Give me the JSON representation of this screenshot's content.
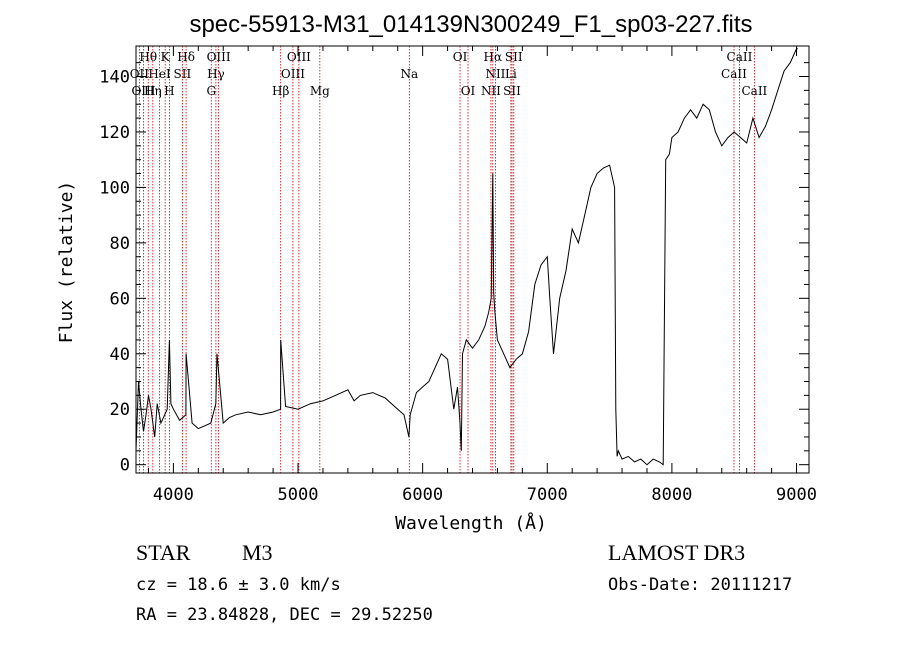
{
  "chart_data": {
    "type": "line",
    "title": "spec-55913-M31_014139N300249_F1_sp03-227.fits",
    "xlabel": "Wavelength (Å)",
    "ylabel": "Flux (relative)",
    "xlim": [
      3700,
      9100
    ],
    "ylim": [
      -3,
      151
    ],
    "x_ticks": [
      4000,
      5000,
      6000,
      7000,
      8000,
      9000
    ],
    "y_ticks": [
      0,
      20,
      40,
      60,
      80,
      100,
      120,
      140
    ],
    "grid": false,
    "series": [
      {
        "x": [
          3700,
          3720,
          3740,
          3760,
          3780,
          3800,
          3820,
          3850,
          3870,
          3900,
          3930,
          3950,
          3968,
          3980,
          4000,
          4050,
          4100,
          4102,
          4150,
          4200,
          4250,
          4300,
          4340,
          4350,
          4400,
          4450,
          4500,
          4600,
          4700,
          4800,
          4860,
          4861,
          4900,
          5000,
          5100,
          5200,
          5300,
          5400,
          5450,
          5500,
          5600,
          5700,
          5800,
          5850,
          5890,
          5900,
          5950,
          6000,
          6050,
          6100,
          6150,
          6200,
          6250,
          6280,
          6300,
          6310,
          6320,
          6350,
          6400,
          6450,
          6500,
          6530,
          6550,
          6563,
          6570,
          6580,
          6600,
          6650,
          6700,
          6750,
          6800,
          6850,
          6900,
          6950,
          7000,
          7020,
          7050,
          7100,
          7150,
          7200,
          7250,
          7300,
          7350,
          7400,
          7450,
          7500,
          7540,
          7550,
          7560,
          7570,
          7600,
          7650,
          7700,
          7750,
          7800,
          7850,
          7900,
          7930,
          7950,
          7980,
          8000,
          8050,
          8100,
          8150,
          8200,
          8250,
          8300,
          8350,
          8400,
          8450,
          8500,
          8550,
          8600,
          8650,
          8700,
          8750,
          8800,
          8850,
          8900,
          8950,
          9000,
          9010
        ],
        "y": [
          5,
          30,
          20,
          12,
          18,
          25,
          20,
          10,
          22,
          15,
          18,
          20,
          45,
          22,
          20,
          16,
          18,
          40,
          15,
          13,
          14,
          15,
          22,
          40,
          15,
          17,
          18,
          19,
          18,
          19,
          20,
          45,
          21,
          20,
          22,
          23,
          25,
          27,
          23,
          25,
          26,
          24,
          20,
          18,
          10,
          18,
          26,
          28,
          30,
          35,
          40,
          38,
          20,
          28,
          15,
          5,
          40,
          45,
          42,
          45,
          50,
          55,
          60,
          105,
          62,
          55,
          45,
          40,
          35,
          38,
          40,
          48,
          65,
          72,
          75,
          60,
          40,
          60,
          70,
          85,
          80,
          90,
          100,
          105,
          107,
          108,
          100,
          20,
          3,
          5,
          2,
          3,
          1,
          2,
          0,
          2,
          1,
          0,
          110,
          112,
          118,
          120,
          125,
          128,
          125,
          130,
          128,
          120,
          115,
          118,
          120,
          118,
          116,
          125,
          118,
          122,
          128,
          135,
          142,
          145,
          150,
          150
        ]
      }
    ]
  },
  "spectral_lines": {
    "top": [
      {
        "text": "Hθ",
        "x": 3798
      },
      {
        "text": "K",
        "x": 3934
      },
      {
        "text": "Hδ",
        "x": 4102
      },
      {
        "text": "OIII",
        "x": 4363
      },
      {
        "text": "OIII",
        "x": 5007
      },
      {
        "text": "OI",
        "x": 6300
      },
      {
        "text": "Hα",
        "x": 6563
      },
      {
        "text": "SII",
        "x": 6731
      },
      {
        "text": "CaII",
        "x": 8542
      }
    ],
    "middle": [
      {
        "text": "OII",
        "x": 3727
      },
      {
        "text": "HeI",
        "x": 3889
      },
      {
        "text": "SII",
        "x": 4072
      },
      {
        "text": "Hγ",
        "x": 4341
      },
      {
        "text": "OIII",
        "x": 4959
      },
      {
        "text": "Na",
        "x": 5893
      },
      {
        "text": "NII",
        "x": 6584
      },
      {
        "text": "Li",
        "x": 6708
      },
      {
        "text": "CaII",
        "x": 8498
      }
    ],
    "bottom": [
      {
        "text": "OIII",
        "x": 3760
      },
      {
        "text": "Hη",
        "x": 3835
      },
      {
        "text": "H",
        "x": 3968
      },
      {
        "text": "G",
        "x": 4304
      },
      {
        "text": "Hβ",
        "x": 4861
      },
      {
        "text": "Mg",
        "x": 5175
      },
      {
        "text": "OI",
        "x": 6364
      },
      {
        "text": "NII",
        "x": 6548
      },
      {
        "text": "SII",
        "x": 6717
      },
      {
        "text": "CaII",
        "x": 8662
      }
    ],
    "marker_lines": [
      3727,
      3760,
      3798,
      3835,
      3889,
      3934,
      3968,
      4072,
      4102,
      4304,
      4341,
      4363,
      4861,
      4959,
      5007,
      5175,
      5893,
      6300,
      6364,
      6548,
      6563,
      6584,
      6708,
      6717,
      6731,
      8498,
      8542,
      8662
    ]
  },
  "info": {
    "object_class": "STAR",
    "subclass": "M3",
    "survey": "LAMOST DR3",
    "redshift": "cz = 18.6 ± 3.0 km/s",
    "obs_date": "Obs-Date: 20111217",
    "coords": "RA =  23.84828, DEC =  29.52250"
  }
}
